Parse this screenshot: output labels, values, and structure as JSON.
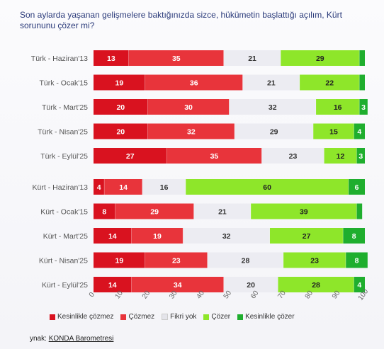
{
  "title": "Son aylarda yaşanan gelişmelere baktığınızda sizce, hükümetin başlattığı açılım, Kürt sorununu çözer mi?",
  "source_prefix": "ynak:",
  "source_name": "KONDA Barometresi",
  "colors": {
    "kesinlikle_cozmez": "#d9121f",
    "cozmez": "#e8343b",
    "fikri_yok": "#ececf2",
    "cozer": "#8ee62a",
    "kesinlikle_cozer": "#1fae2e"
  },
  "chart_data": {
    "type": "bar",
    "orientation": "horizontal",
    "stacked": true,
    "xlim": [
      0,
      100
    ],
    "x_ticks": [
      "0",
      "10",
      "20",
      "30",
      "40",
      "50",
      "60",
      "70",
      "80",
      "90",
      "100"
    ],
    "series_names": [
      "Kesinlikle çözmez",
      "Çözmez",
      "Fikri yok",
      "Çözer",
      "Kesinlikle çözer"
    ],
    "groups": [
      {
        "rows": [
          {
            "label": "Türk - Haziran'13",
            "values": [
              13,
              35,
              21,
              29,
              2
            ],
            "labels": [
              "13",
              "35",
              "21",
              "29",
              ""
            ]
          },
          {
            "label": "Türk - Ocak'15",
            "values": [
              19,
              36,
              21,
              22,
              2
            ],
            "labels": [
              "19",
              "36",
              "21",
              "22",
              ""
            ]
          },
          {
            "label": "Türk - Mart'25",
            "values": [
              20,
              30,
              32,
              16,
              3
            ],
            "labels": [
              "20",
              "30",
              "32",
              "16",
              "3"
            ]
          },
          {
            "label": "Türk - Nisan'25",
            "values": [
              20,
              32,
              29,
              15,
              4
            ],
            "labels": [
              "20",
              "32",
              "29",
              "15",
              "4"
            ]
          },
          {
            "label": "Türk - Eylül'25",
            "values": [
              27,
              35,
              23,
              12,
              3
            ],
            "labels": [
              "27",
              "35",
              "23",
              "12",
              "3"
            ]
          }
        ]
      },
      {
        "rows": [
          {
            "label": "Kürt - Haziran'13",
            "values": [
              4,
              14,
              16,
              60,
              6
            ],
            "labels": [
              "4",
              "14",
              "16",
              "60",
              "6"
            ]
          },
          {
            "label": "Kürt - Ocak'15",
            "values": [
              8,
              29,
              21,
              39,
              2
            ],
            "labels": [
              "8",
              "29",
              "21",
              "39",
              ""
            ]
          },
          {
            "label": "Kürt - Mart'25",
            "values": [
              14,
              19,
              32,
              27,
              8
            ],
            "labels": [
              "14",
              "19",
              "32",
              "27",
              "8"
            ]
          },
          {
            "label": "Kürt - Nisan'25",
            "values": [
              19,
              23,
              28,
              23,
              8
            ],
            "labels": [
              "19",
              "23",
              "28",
              "23",
              "8"
            ]
          },
          {
            "label": "Kürt - Eylül'25",
            "values": [
              14,
              34,
              20,
              28,
              4
            ],
            "labels": [
              "14",
              "34",
              "20",
              "28",
              "4"
            ]
          }
        ]
      }
    ]
  }
}
